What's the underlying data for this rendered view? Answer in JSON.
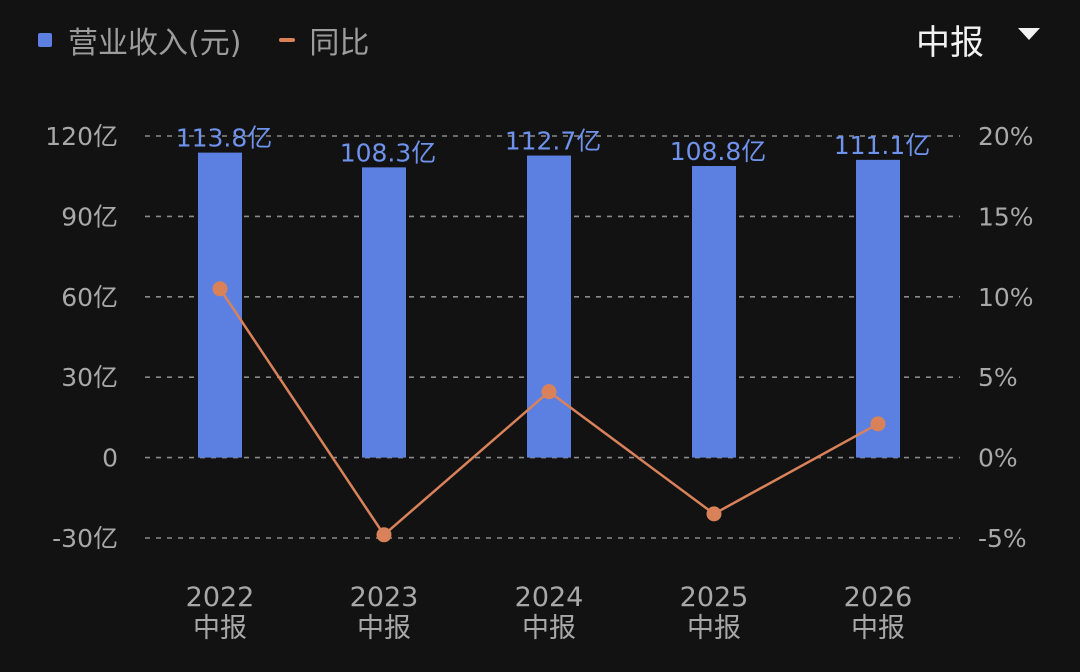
{
  "legend": {
    "bar_label": "营业收入(元)",
    "line_label": "同比"
  },
  "period_selector": {
    "label": "中报",
    "icon": "caret-down-icon"
  },
  "colors": {
    "bar": "#5b80e1",
    "line": "#d9825a",
    "value_label": "#6f92ec",
    "grid": "#8a8a8a",
    "background": "#121212"
  },
  "chart_data": {
    "type": "bar",
    "categories": [
      "2022 中报",
      "2023 中报",
      "2024 中报",
      "2025 中报",
      "2026 中报"
    ],
    "category_lines": [
      [
        "2022",
        "中报"
      ],
      [
        "2023",
        "中报"
      ],
      [
        "2024",
        "中报"
      ],
      [
        "2025",
        "中报"
      ],
      [
        "2026",
        "中报"
      ]
    ],
    "series": [
      {
        "name": "营业收入(元)",
        "type": "bar",
        "axis": "left",
        "values": [
          113.8,
          108.3,
          112.7,
          108.8,
          111.1
        ],
        "unit": "亿",
        "data_labels": [
          "113.8亿",
          "108.3亿",
          "112.7亿",
          "108.8亿",
          "111.1亿"
        ]
      },
      {
        "name": "同比",
        "type": "line",
        "axis": "right",
        "values": [
          10.5,
          -4.8,
          4.1,
          -3.5,
          2.1
        ],
        "unit": "%"
      }
    ],
    "y_left": {
      "min": -30,
      "max": 120,
      "ticks": [
        120,
        90,
        60,
        30,
        0,
        -30
      ],
      "tick_labels": [
        "120亿",
        "90亿",
        "60亿",
        "30亿",
        "0",
        "-30亿"
      ]
    },
    "y_right": {
      "min": -5,
      "max": 20,
      "ticks": [
        20,
        15,
        10,
        5,
        0,
        -5
      ],
      "tick_labels": [
        "20%",
        "15%",
        "10%",
        "5%",
        "0%",
        "-5%"
      ]
    },
    "grid": true,
    "grid_style": "dashed",
    "legend_position": "top-left"
  }
}
